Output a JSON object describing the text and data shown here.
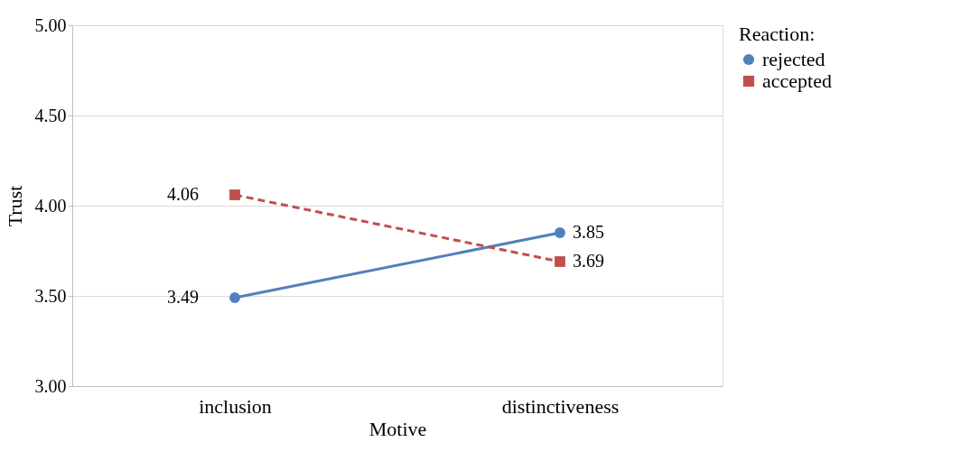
{
  "chart_data": {
    "type": "line",
    "xlabel": "Motive",
    "ylabel": "Trust",
    "legend_title": "Reaction:",
    "categories": [
      "inclusion",
      "distinctiveness"
    ],
    "series": [
      {
        "name": "rejected",
        "color": "#4f81bd",
        "values": [
          3.49,
          3.85
        ],
        "marker": "circle",
        "line_style": "solid"
      },
      {
        "name": "accepted",
        "color": "#c0504d",
        "values": [
          4.06,
          3.69
        ],
        "marker": "square",
        "line_style": "dashed"
      }
    ],
    "ylim": [
      3,
      5
    ],
    "yticks": [
      {
        "value": 3,
        "label": "3.00"
      },
      {
        "value": 3.5,
        "label": "3.50"
      },
      {
        "value": 4,
        "label": "4.00"
      },
      {
        "value": 4.5,
        "label": "4.50"
      },
      {
        "value": 5,
        "label": "5.00"
      }
    ],
    "grid": "y",
    "legend": "right",
    "data_labels": true
  }
}
